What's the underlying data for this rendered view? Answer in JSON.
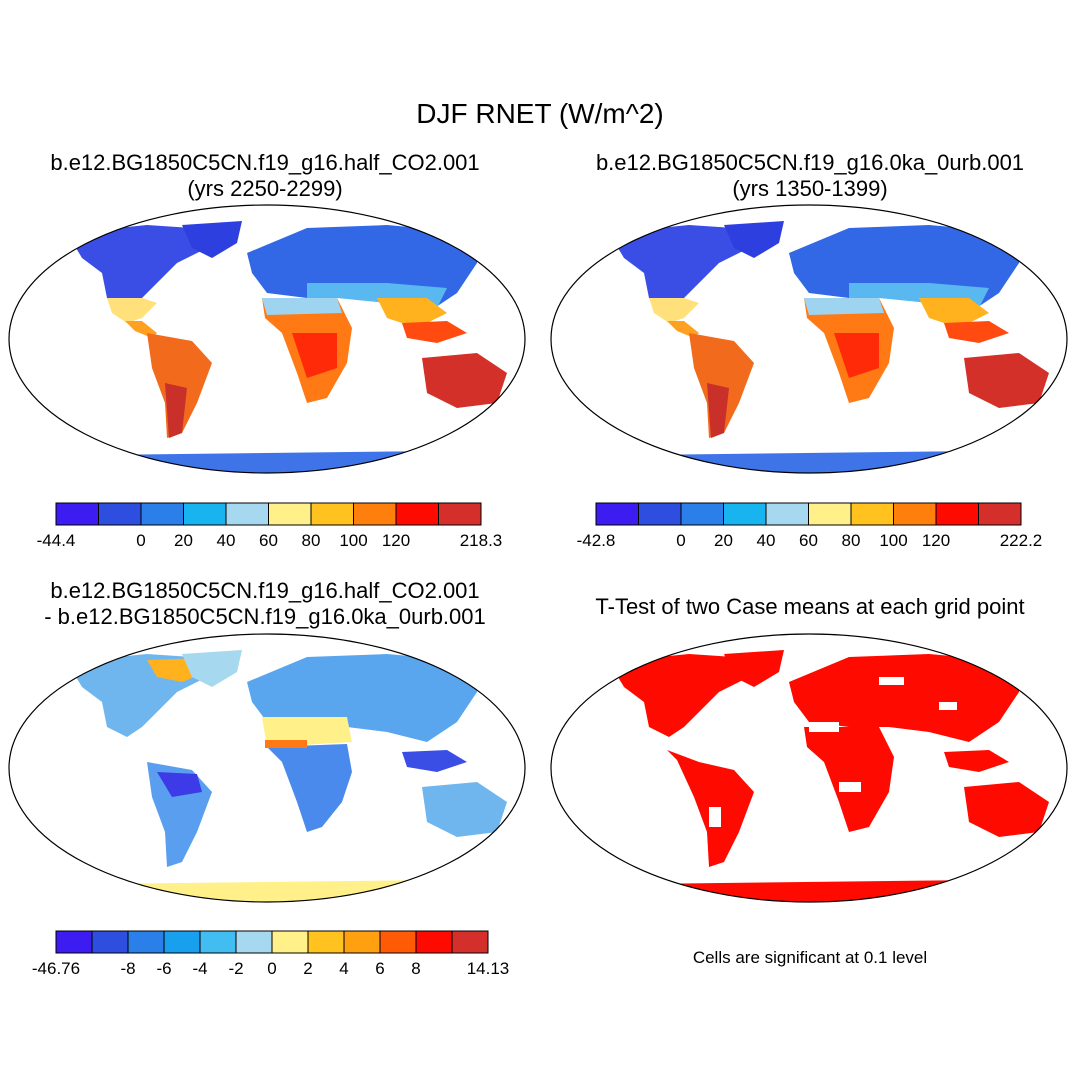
{
  "title": "DJF RNET (W/m^2)",
  "panels": {
    "top_left": {
      "title1": "b.e12.BG1850C5CN.f19_g16.half_CO2.001",
      "title2": "(yrs 2250-2299)"
    },
    "top_right": {
      "title1": "b.e12.BG1850C5CN.f19_g16.0ka_0urb.001",
      "title2": "(yrs 1350-1399)"
    },
    "bottom_left": {
      "title1": "b.e12.BG1850C5CN.f19_g16.half_CO2.001",
      "title2": "- b.e12.BG1850C5CN.f19_g16.0ka_0urb.001"
    },
    "bottom_right": {
      "title1": "T-Test of two Case means at each grid point",
      "note": "Cells are significant at 0.1 level"
    }
  },
  "colorbars": {
    "top_left": {
      "colors": [
        "#3d1cf2",
        "#2e4ee0",
        "#2a7fe8",
        "#18b4f0",
        "#a6d8ef",
        "#fff08a",
        "#ffc21e",
        "#ff7f0c",
        "#ff0a00",
        "#d42f2a"
      ],
      "ticks": [
        {
          "label": "-44.4",
          "edge": 0
        },
        {
          "label": "0",
          "edge": 2
        },
        {
          "label": "20",
          "edge": 3
        },
        {
          "label": "40",
          "edge": 4
        },
        {
          "label": "60",
          "edge": 5
        },
        {
          "label": "80",
          "edge": 6
        },
        {
          "label": "100",
          "edge": 7
        },
        {
          "label": "120",
          "edge": 8
        },
        {
          "label": "218.3",
          "edge": 10
        }
      ]
    },
    "top_right": {
      "colors": [
        "#3d1cf2",
        "#2e4ee0",
        "#2a7fe8",
        "#18b4f0",
        "#a6d8ef",
        "#fff08a",
        "#ffc21e",
        "#ff7f0c",
        "#ff0a00",
        "#d42f2a"
      ],
      "ticks": [
        {
          "label": "-42.8",
          "edge": 0
        },
        {
          "label": "0",
          "edge": 2
        },
        {
          "label": "20",
          "edge": 3
        },
        {
          "label": "40",
          "edge": 4
        },
        {
          "label": "60",
          "edge": 5
        },
        {
          "label": "80",
          "edge": 6
        },
        {
          "label": "100",
          "edge": 7
        },
        {
          "label": "120",
          "edge": 8
        },
        {
          "label": "222.2",
          "edge": 10
        }
      ]
    },
    "bottom_left": {
      "colors": [
        "#3d1cf2",
        "#2e4ee0",
        "#2a7fe8",
        "#18a0ee",
        "#42bdf2",
        "#a6d8ef",
        "#fff08a",
        "#ffc21e",
        "#ffa010",
        "#ff5a06",
        "#ff0a00",
        "#d42f2a"
      ],
      "ticks": [
        {
          "label": "-46.76",
          "edge": 0
        },
        {
          "label": "-8",
          "edge": 2
        },
        {
          "label": "-6",
          "edge": 3
        },
        {
          "label": "-4",
          "edge": 4
        },
        {
          "label": "-2",
          "edge": 5
        },
        {
          "label": "0",
          "edge": 6
        },
        {
          "label": "2",
          "edge": 7
        },
        {
          "label": "4",
          "edge": 8
        },
        {
          "label": "6",
          "edge": 9
        },
        {
          "label": "8",
          "edge": 10
        },
        {
          "label": "14.13",
          "edge": 12
        }
      ]
    }
  }
}
